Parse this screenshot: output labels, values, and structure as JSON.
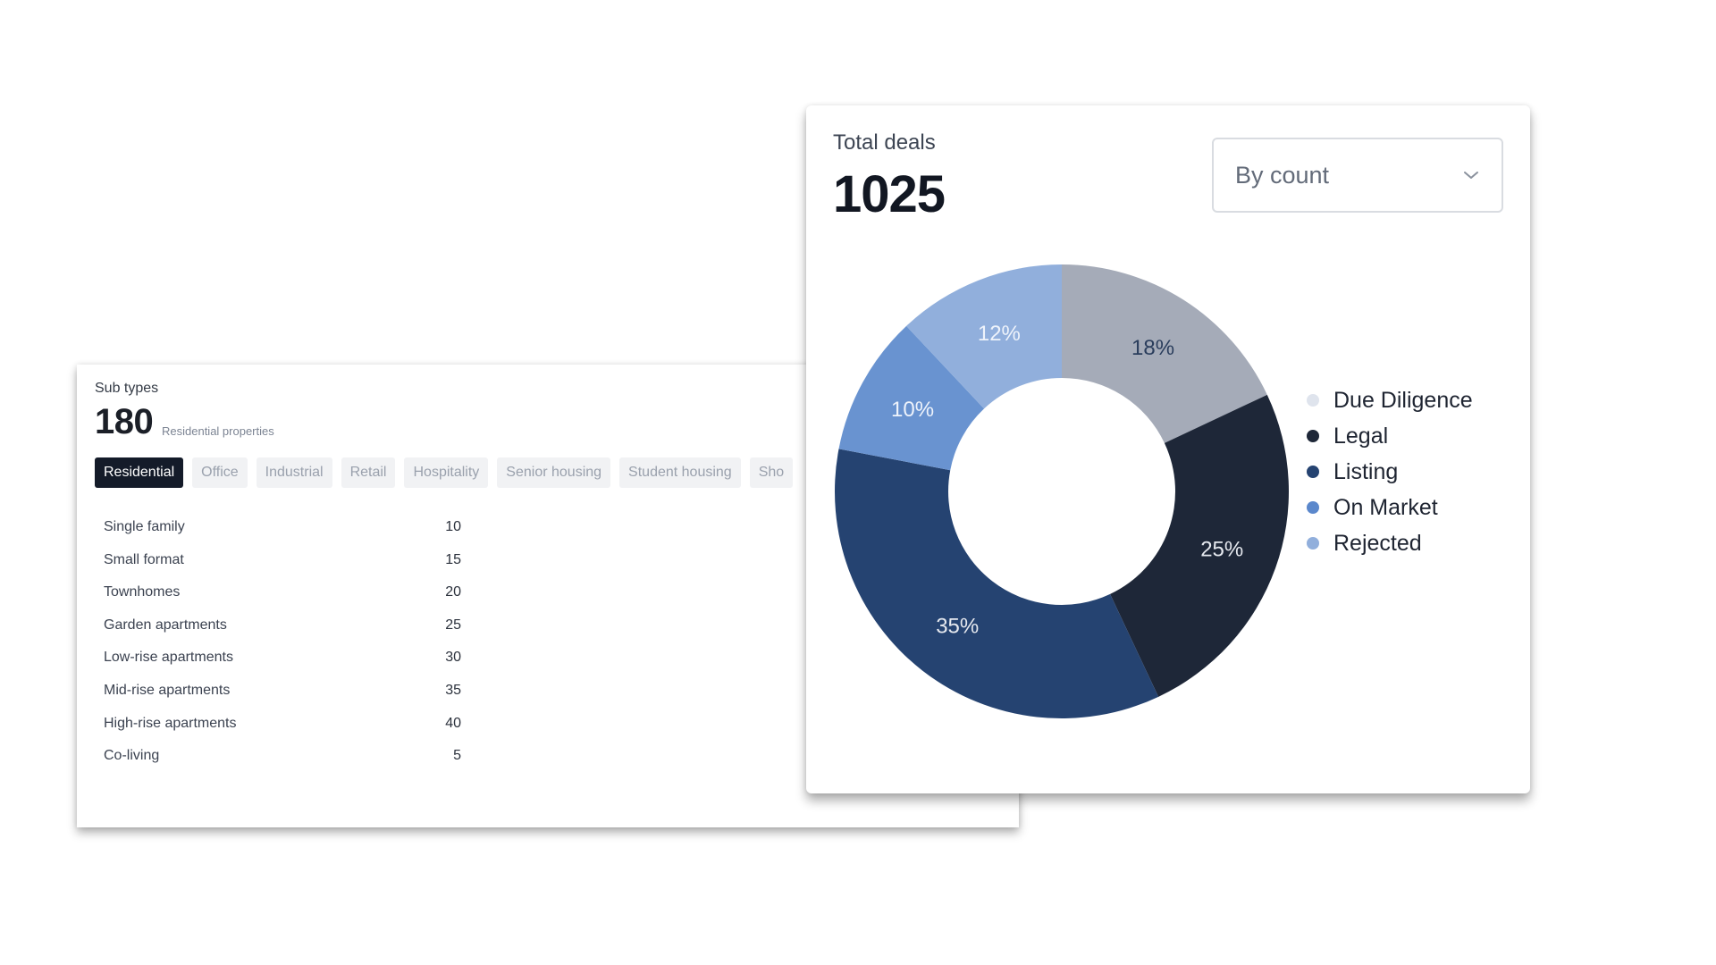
{
  "subtypes": {
    "label": "Sub types",
    "count": "180",
    "caption": "Residential properties",
    "tabs": [
      {
        "label": "Residential",
        "active": true
      },
      {
        "label": "Office",
        "active": false
      },
      {
        "label": "Industrial",
        "active": false
      },
      {
        "label": "Retail",
        "active": false
      },
      {
        "label": "Hospitality",
        "active": false
      },
      {
        "label": "Senior housing",
        "active": false
      },
      {
        "label": "Student housing",
        "active": false
      },
      {
        "label": "Sho",
        "active": false
      }
    ],
    "rows": [
      {
        "name": "Single family",
        "value": "10"
      },
      {
        "name": "Small format",
        "value": "15"
      },
      {
        "name": "Townhomes",
        "value": "20"
      },
      {
        "name": "Garden apartments",
        "value": "25"
      },
      {
        "name": "Low-rise apartments",
        "value": "30"
      },
      {
        "name": "Mid-rise apartments",
        "value": "35"
      },
      {
        "name": "High-rise apartments",
        "value": "40"
      },
      {
        "name": "Co-living",
        "value": "5"
      }
    ]
  },
  "deals": {
    "label": "Total deals",
    "count": "1025",
    "dropdown": {
      "value": "By count",
      "icon": "chevron-down-icon"
    }
  },
  "chart_data": {
    "type": "pie",
    "donut": true,
    "title": "",
    "legend_position": "right",
    "slices": [
      {
        "label": "18%",
        "value": 18,
        "color": "#a5abb8"
      },
      {
        "label": "25%",
        "value": 25,
        "color": "#1e2738"
      },
      {
        "label": "35%",
        "value": 35,
        "color": "#254371"
      },
      {
        "label": "10%",
        "value": 10,
        "color": "#6993d0"
      },
      {
        "label": "12%",
        "value": 12,
        "color": "#91afdc"
      }
    ],
    "legend": [
      {
        "name": "Due Diligence",
        "color": "#dfe4ed"
      },
      {
        "name": "Legal",
        "color": "#1e2738"
      },
      {
        "name": "Listing",
        "color": "#254371"
      },
      {
        "name": "On Market",
        "color": "#5b88cc"
      },
      {
        "name": "Rejected",
        "color": "#91afdc"
      }
    ]
  }
}
